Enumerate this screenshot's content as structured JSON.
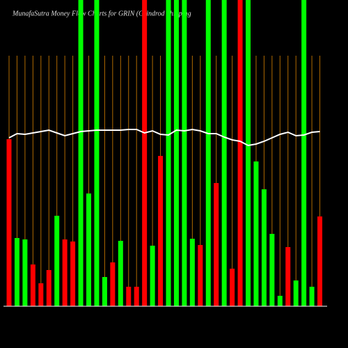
{
  "chart_data": {
    "type": "bar",
    "title": "MunafaSutra  Money Flow  Charts for GRIN                           (Grindrod Shipping",
    "values": [
      240,
      98,
      96,
      60,
      33,
      52,
      130,
      96,
      93,
      440,
      162,
      440,
      42,
      63,
      94,
      28,
      28,
      440,
      87,
      216,
      440,
      440,
      440,
      97,
      88,
      440,
      177,
      440,
      54,
      440,
      440,
      208,
      168,
      104,
      15,
      85,
      37,
      440,
      28,
      129
    ],
    "colors": [
      "#ff0000",
      "#00ff00",
      "#00ff00",
      "#ff0000",
      "#ff0000",
      "#ff0000",
      "#00ff00",
      "#ff0000",
      "#ff0000",
      "#00ff00",
      "#00ff00",
      "#00ff00",
      "#00ff00",
      "#ff0000",
      "#00ff00",
      "#ff0000",
      "#ff0000",
      "#ff0000",
      "#00ff00",
      "#ff0000",
      "#00ff00",
      "#00ff00",
      "#00ff00",
      "#00ff00",
      "#ff0000",
      "#00ff00",
      "#ff0000",
      "#00ff00",
      "#ff0000",
      "#ff0000",
      "#00ff00",
      "#00ff00",
      "#00ff00",
      "#00ff00",
      "#00ff00",
      "#ff0000",
      "#00ff00",
      "#00ff00",
      "#00ff00",
      "#ff0000"
    ],
    "line": {
      "color": "#ffffff",
      "values": [
        242,
        248,
        247,
        249,
        251,
        253,
        249,
        245,
        248,
        251,
        252,
        253,
        253,
        253,
        253,
        254,
        254,
        249,
        252,
        247,
        246,
        253,
        252,
        254,
        252,
        248,
        248,
        243,
        239,
        237,
        231,
        233,
        237,
        242,
        247,
        250,
        245,
        246,
        250,
        251
      ]
    },
    "ylim": [
      0,
      440
    ],
    "grid": true,
    "grid_color": "#b06a00"
  }
}
